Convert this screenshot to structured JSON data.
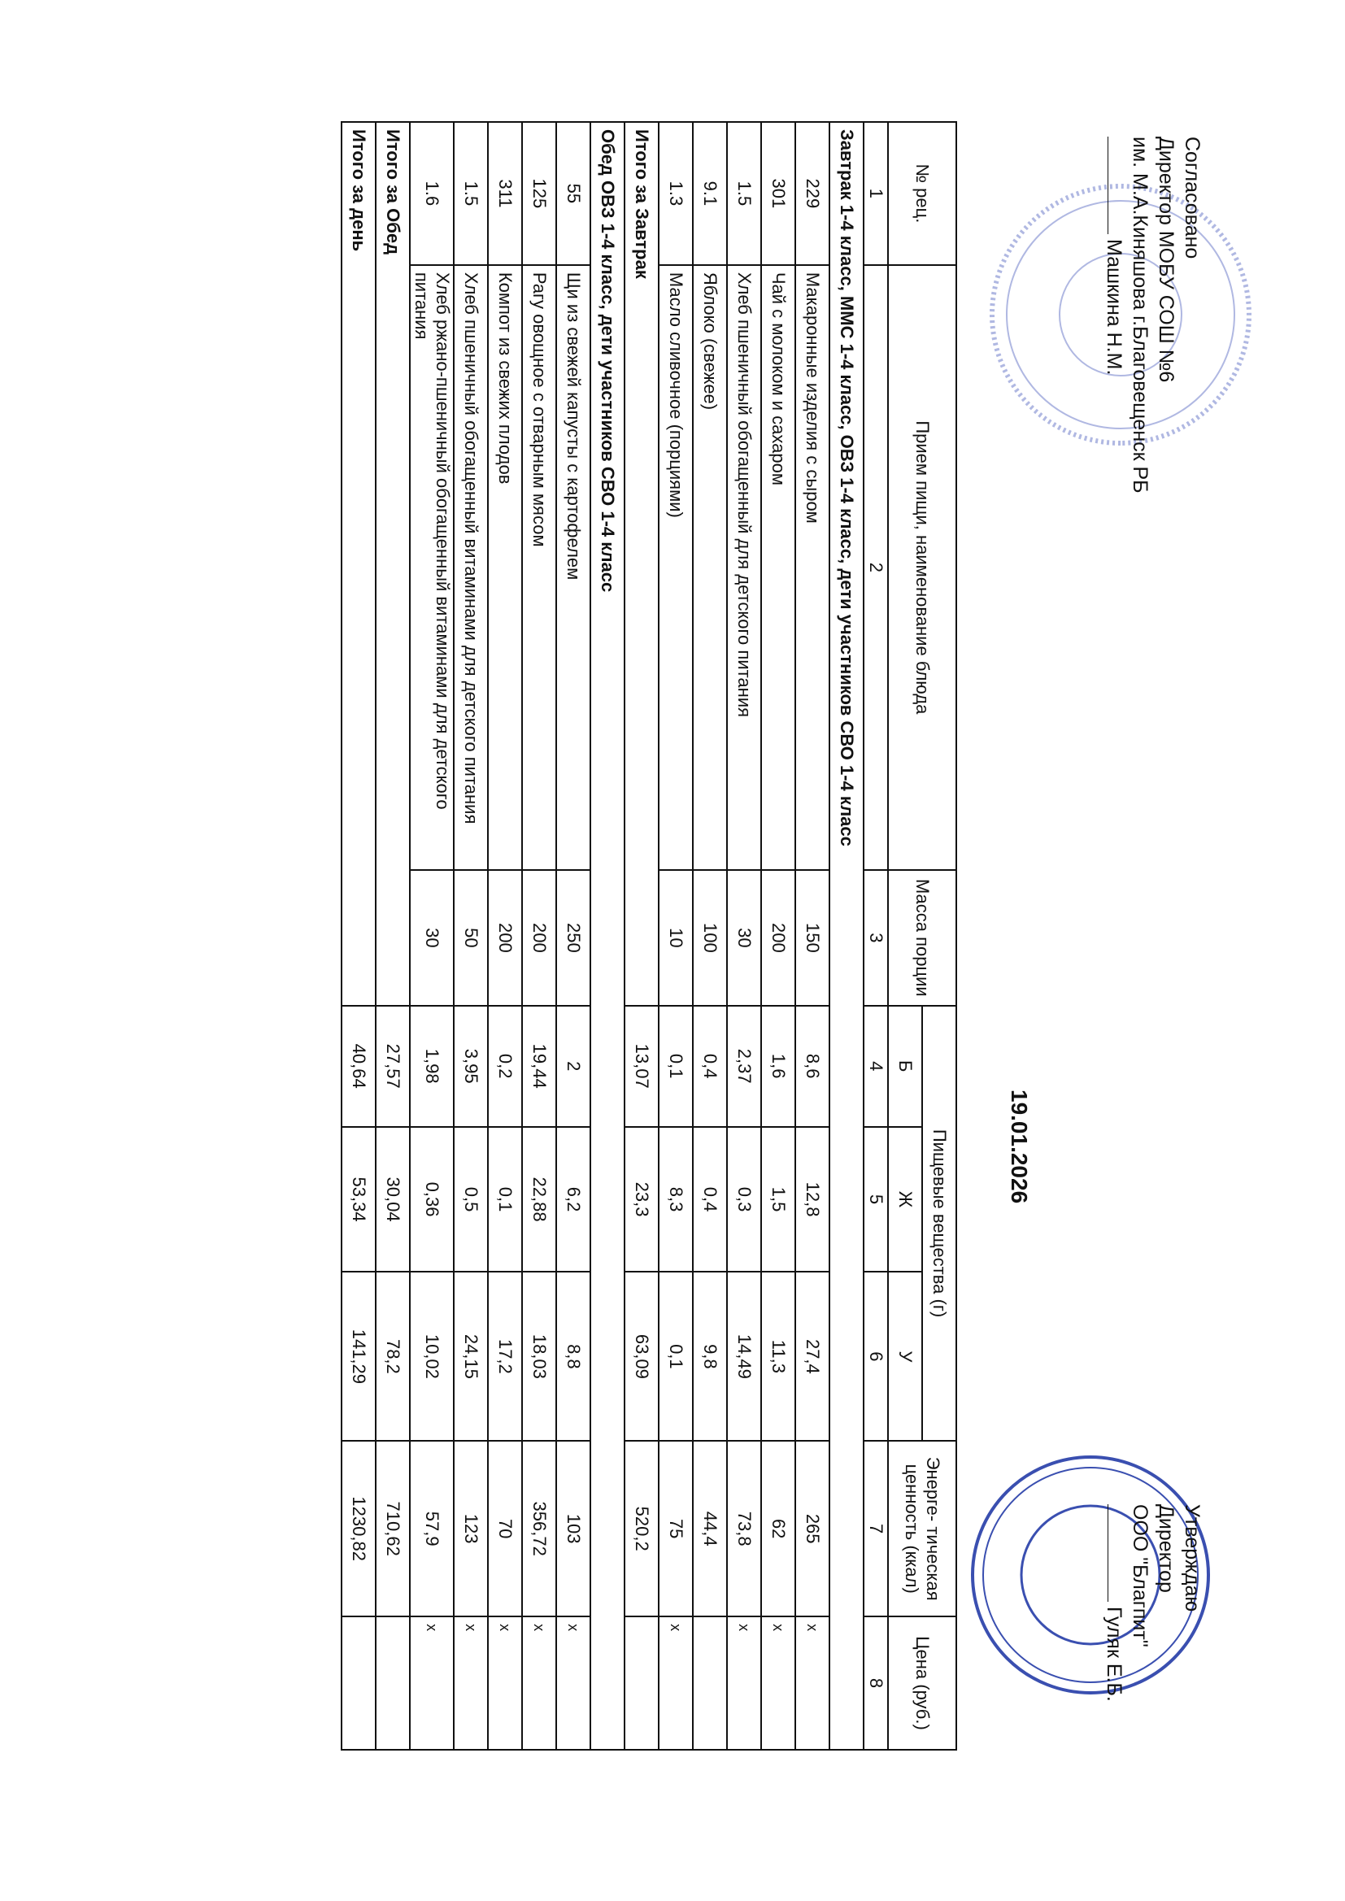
{
  "approval_left": {
    "title": "Согласовано",
    "line1": "Директор МОБУ СОШ №6",
    "line2": "им. М.А.Киняшова г.Благовещенск РБ",
    "name": "Машкина Н.М."
  },
  "approval_right": {
    "title": "Утверждаю",
    "line1": "Директор",
    "line2": "ООО \"Благпит\"",
    "name": "Гуляк Е.Б."
  },
  "date": "19.01.2026",
  "stamp_color": "#3a4fb0",
  "header": {
    "rec_no": "№ рец.",
    "dish": "Прием пищи, наименование блюда",
    "mass": "Масса порции",
    "nutrients": "Пищевые вещества (г)",
    "b": "Б",
    "zh": "Ж",
    "u": "У",
    "energy": "Энерге- тическая ценность (ккал)",
    "price": "Цена (руб.)",
    "col_numbers": [
      "1",
      "2",
      "3",
      "4",
      "5",
      "6",
      "7",
      "8"
    ]
  },
  "sections": [
    {
      "title": "Завтрак 1-4 класс, ММС 1-4 класс, ОВЗ 1-4 класс, дети участников СВО 1-4 класс",
      "rows": [
        {
          "code": "229",
          "name": "Макаронные изделия с сыром",
          "mass": "150",
          "b": "8,6",
          "zh": "12,8",
          "u": "27,4",
          "kcal": "265",
          "price": "x"
        },
        {
          "code": "301",
          "name": "Чай с молоком и сахаром",
          "mass": "200",
          "b": "1,6",
          "zh": "1,5",
          "u": "11,3",
          "kcal": "62",
          "price": "x"
        },
        {
          "code": "1.5",
          "name": "Хлеб пшеничный обогащенный для детского питания",
          "mass": "30",
          "b": "2,37",
          "zh": "0,3",
          "u": "14,49",
          "kcal": "73,8",
          "price": "x"
        },
        {
          "code": "9.1",
          "name": "Яблоко (свежее)",
          "mass": "100",
          "b": "0,4",
          "zh": "0,4",
          "u": "9,8",
          "kcal": "44,4",
          "price": ""
        },
        {
          "code": "1.3",
          "name": "Масло сливочное (порциями)",
          "mass": "10",
          "b": "0,1",
          "zh": "8,3",
          "u": "0,1",
          "kcal": "75",
          "price": "x"
        }
      ],
      "total": {
        "label": "Итого за Завтрак",
        "b": "13,07",
        "zh": "23,3",
        "u": "63,09",
        "kcal": "520,2"
      }
    },
    {
      "title": "Обед  ОВЗ 1-4 класс, дети участников СВО 1-4 класс",
      "rows": [
        {
          "code": "55",
          "name": "Щи из свежей капусты с картофелем",
          "mass": "250",
          "b": "2",
          "zh": "6,2",
          "u": "8,8",
          "kcal": "103",
          "price": "x"
        },
        {
          "code": "125",
          "name": "Рагу овощное с отварным мясом",
          "mass": "200",
          "b": "19,44",
          "zh": "22,88",
          "u": "18,03",
          "kcal": "356,72",
          "price": "x"
        },
        {
          "code": "311",
          "name": "Компот из свежих плодов",
          "mass": "200",
          "b": "0,2",
          "zh": "0,1",
          "u": "17,2",
          "kcal": "70",
          "price": "x"
        },
        {
          "code": "1.5",
          "name": "Хлеб пшеничный обогащенный витаминами для детского питания",
          "mass": "50",
          "b": "3,95",
          "zh": "0,5",
          "u": "24,15",
          "kcal": "123",
          "price": "x"
        },
        {
          "code": "1.6",
          "name": "Хлеб ржано-пшеничный обогащенный витаминами для детского питания",
          "mass": "30",
          "b": "1,98",
          "zh": "0,36",
          "u": "10,02",
          "kcal": "57,9",
          "price": "x"
        }
      ],
      "total": {
        "label": "Итого за Обед",
        "b": "27,57",
        "zh": "30,04",
        "u": "78,2",
        "kcal": "710,62"
      }
    }
  ],
  "day_total": {
    "label": "Итого за день",
    "b": "40,64",
    "zh": "53,34",
    "u": "141,29",
    "kcal": "1230,82"
  }
}
